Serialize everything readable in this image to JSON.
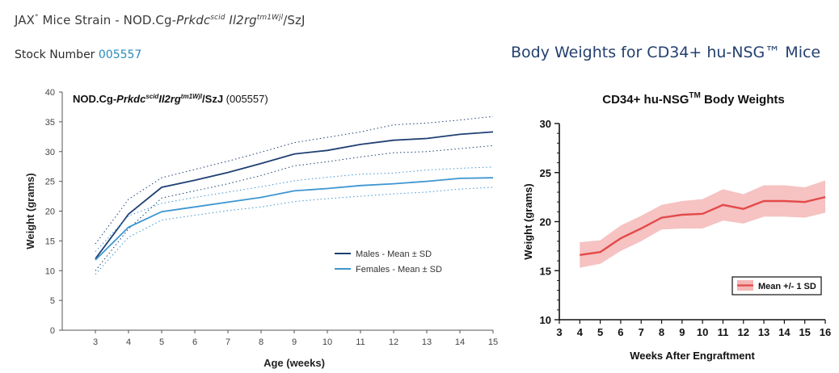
{
  "header": {
    "brand": "JAX",
    "brand_mark": "°",
    "strain_prefix": "Mice Strain - NOD.Cg-",
    "gene1": "Prkdc",
    "gene1_sup": "scid",
    "gene2": "Il2rg",
    "gene2_sup": "tm1Wjl",
    "strain_suffix": "/SzJ",
    "stock_label": "Stock Number",
    "stock_number": "005557",
    "right_heading": "Body Weights for CD34+ hu-NSG™ Mice"
  },
  "colors": {
    "male": "#1f3f73",
    "female": "#3d96d1",
    "cd34": "#e34a4a",
    "cd34_band": "#f4b7b7",
    "stock_number": "#2a8bc0",
    "heading": "#24406e"
  },
  "chart_data": [
    {
      "type": "line",
      "title_parts": {
        "pre": "NOD.Cg-",
        "g1": "Prkdc",
        "g1sup": "scid",
        "g2": "Il2rg",
        "g2sup": "tm1Wjl",
        "post": "/SzJ",
        "num": "(005557)"
      },
      "xlabel": "Age (weeks)",
      "ylabel": "Weight (grams)",
      "x": [
        3,
        4,
        5,
        6,
        7,
        8,
        9,
        10,
        11,
        12,
        13,
        14,
        15
      ],
      "xlim": [
        2,
        15
      ],
      "ylim": [
        0,
        40
      ],
      "yticks": [
        0,
        5,
        10,
        15,
        20,
        25,
        30,
        35,
        40
      ],
      "legend_position": "center-right",
      "series": [
        {
          "name": "Males - Mean ± SD",
          "mean": [
            12.0,
            19.5,
            24.0,
            25.2,
            26.5,
            28.0,
            29.6,
            30.2,
            31.2,
            31.9,
            32.2,
            32.9,
            33.3
          ],
          "upper": [
            14.5,
            22.0,
            25.6,
            27.0,
            28.4,
            29.9,
            31.5,
            32.4,
            33.3,
            34.5,
            34.8,
            35.3,
            35.9
          ],
          "lower": [
            10.0,
            17.0,
            22.2,
            23.4,
            24.6,
            26.0,
            27.6,
            28.3,
            29.1,
            29.8,
            30.0,
            30.5,
            31.0
          ]
        },
        {
          "name": "Females - Mean ± SD",
          "mean": [
            11.8,
            17.3,
            19.9,
            20.7,
            21.5,
            22.3,
            23.4,
            23.8,
            24.3,
            24.6,
            25.0,
            25.5,
            25.6
          ],
          "upper": [
            13.2,
            19.2,
            21.3,
            22.3,
            23.2,
            24.1,
            25.1,
            25.7,
            26.2,
            26.4,
            26.9,
            27.2,
            27.4
          ],
          "lower": [
            9.4,
            15.6,
            18.5,
            19.3,
            20.1,
            20.7,
            21.6,
            22.1,
            22.5,
            22.9,
            23.2,
            23.7,
            24.0
          ]
        }
      ]
    },
    {
      "type": "line",
      "title": "CD34+ hu-NSG",
      "title_sup": "TM",
      "title_post": " Body Weights",
      "xlabel": "Weeks After Engraftment",
      "ylabel": "Weight (grams)",
      "x": [
        4,
        5,
        6,
        7,
        8,
        9,
        10,
        11,
        12,
        13,
        14,
        15,
        16
      ],
      "xticks": [
        3,
        4,
        5,
        6,
        7,
        8,
        9,
        10,
        11,
        12,
        13,
        14,
        15,
        16
      ],
      "xlim": [
        3,
        16
      ],
      "ylim": [
        10,
        30
      ],
      "yticks": [
        10,
        15,
        20,
        25,
        30
      ],
      "legend_position": "bottom-right",
      "series": [
        {
          "name": "Mean +/- 1 SD",
          "mean": [
            16.6,
            16.9,
            18.3,
            19.3,
            20.4,
            20.7,
            20.8,
            21.7,
            21.3,
            22.1,
            22.1,
            22.0,
            22.5
          ],
          "upper": [
            17.9,
            18.1,
            19.6,
            20.6,
            21.7,
            22.1,
            22.3,
            23.3,
            22.8,
            23.7,
            23.7,
            23.5,
            24.2
          ],
          "lower": [
            15.3,
            15.7,
            17.0,
            18.0,
            19.2,
            19.3,
            19.3,
            20.1,
            19.8,
            20.5,
            20.5,
            20.4,
            20.9
          ]
        }
      ]
    }
  ]
}
